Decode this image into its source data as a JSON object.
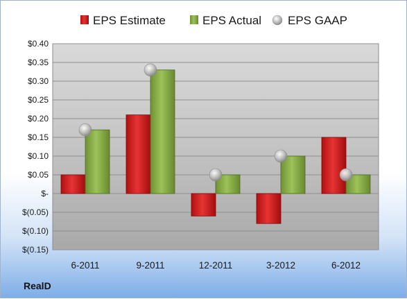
{
  "colors": {
    "estimate": "#d11f1f",
    "actual": "#8bb04a",
    "gaap": "#b9b9b9",
    "plot_background": "#c8c8c8"
  },
  "chart_data": {
    "type": "bar",
    "categories": [
      "6-2011",
      "9-2011",
      "12-2011",
      "3-2012",
      "6-2012"
    ],
    "series": [
      {
        "name": "EPS Estimate",
        "kind": "bar",
        "values": [
          0.05,
          0.21,
          -0.06,
          -0.08,
          0.15
        ]
      },
      {
        "name": "EPS Actual",
        "kind": "bar",
        "values": [
          0.17,
          0.33,
          0.05,
          0.1,
          0.05
        ]
      },
      {
        "name": "EPS GAAP",
        "kind": "marker",
        "values": [
          0.17,
          0.33,
          0.05,
          0.1,
          0.05
        ]
      }
    ],
    "ylim": [
      -0.15,
      0.4
    ],
    "yticks": [
      0.4,
      0.35,
      0.3,
      0.25,
      0.2,
      0.15,
      0.1,
      0.05,
      0,
      -0.05,
      -0.1,
      -0.15
    ],
    "ytick_labels": [
      "$0.40",
      "$0.35",
      "$0.30",
      "$0.25",
      "$0.20",
      "$0.15",
      "$0.10",
      "$0.05",
      "$-",
      "$(0.05)",
      "$(0.10)",
      "$(0.15)"
    ],
    "legend_position": "top",
    "grid": true,
    "company": "RealD"
  }
}
